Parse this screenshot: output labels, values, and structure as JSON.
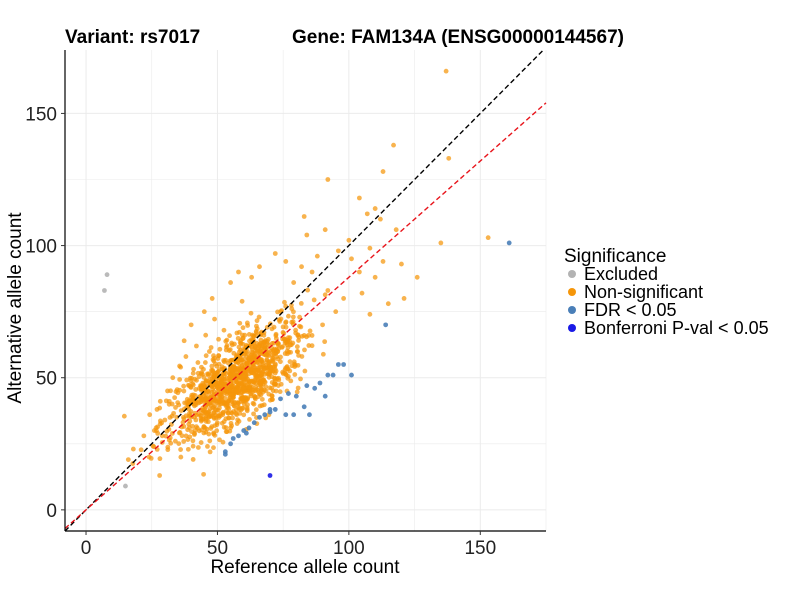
{
  "chart_data": {
    "type": "scatter",
    "title_left": "Variant: rs7017",
    "title_right": "Gene: FAM134A (ENSG00000144567)",
    "xlabel": "Reference allele count",
    "ylabel": "Alternative allele count",
    "xlim": [
      -8,
      175
    ],
    "ylim": [
      -8,
      174
    ],
    "xticks": [
      0,
      50,
      100,
      150
    ],
    "yticks": [
      0,
      50,
      100,
      150
    ],
    "grid": true,
    "reference_lines": [
      {
        "name": "identity",
        "slope": 1.0,
        "intercept": 0,
        "color": "#000000",
        "dash": true
      },
      {
        "name": "fitted",
        "slope": 0.88,
        "intercept": 0,
        "color": "#e8141b",
        "dash": true
      }
    ],
    "legend": {
      "title": "Significance",
      "position": "right",
      "entries": [
        {
          "label": "Excluded",
          "color": "#b3b3b3"
        },
        {
          "label": "Non-significant",
          "color": "#f5960a"
        },
        {
          "label": "FDR < 0.05",
          "color": "#4a7fb8"
        },
        {
          "label": "Bonferroni P-val < 0.05",
          "color": "#1a1ae6"
        }
      ]
    },
    "series": [
      {
        "name": "Excluded",
        "color": "#b3b3b3",
        "points": [
          [
            7,
            83
          ],
          [
            8,
            89
          ],
          [
            15,
            9
          ]
        ]
      },
      {
        "name": "FDR < 0.05",
        "color": "#4a7fb8",
        "points": [
          [
            161,
            101
          ],
          [
            114,
            70
          ],
          [
            101,
            51
          ],
          [
            98,
            55
          ],
          [
            96,
            55
          ],
          [
            94,
            51
          ],
          [
            92,
            51
          ],
          [
            89,
            48
          ],
          [
            87,
            46
          ],
          [
            84,
            47
          ],
          [
            80,
            43
          ],
          [
            77,
            44
          ],
          [
            74,
            42
          ],
          [
            72,
            38
          ],
          [
            70,
            37
          ],
          [
            68,
            36
          ],
          [
            66,
            35
          ],
          [
            62,
            31
          ],
          [
            60,
            30
          ],
          [
            58,
            28
          ],
          [
            56,
            27
          ],
          [
            55,
            25
          ],
          [
            53,
            22
          ],
          [
            53,
            21
          ],
          [
            70,
            38
          ],
          [
            76,
            36
          ],
          [
            79,
            36
          ],
          [
            83,
            39
          ],
          [
            85,
            36
          ],
          [
            91,
            43
          ],
          [
            64,
            33
          ],
          [
            61,
            29
          ]
        ]
      },
      {
        "name": "Bonferroni P-val < 0.05",
        "color": "#1a1ae6",
        "points": [
          [
            70,
            13
          ]
        ]
      },
      {
        "name": "Non-significant",
        "color": "#f5960a",
        "outliers": [
          [
            137,
            166
          ],
          [
            117,
            138
          ],
          [
            138,
            133
          ],
          [
            113,
            128
          ],
          [
            92,
            125
          ],
          [
            104,
            118
          ],
          [
            110,
            114
          ],
          [
            107,
            112
          ],
          [
            83,
            111
          ],
          [
            112,
            110
          ],
          [
            91,
            106
          ],
          [
            118,
            106
          ],
          [
            84,
            104
          ],
          [
            135,
            101
          ],
          [
            153,
            103
          ],
          [
            100,
            102
          ],
          [
            108,
            99
          ],
          [
            120,
            93
          ],
          [
            126,
            88
          ],
          [
            121,
            80
          ],
          [
            86,
            90
          ],
          [
            79,
            86
          ],
          [
            92,
            83
          ],
          [
            28,
            13
          ],
          [
            24,
            20
          ],
          [
            18,
            23
          ],
          [
            22,
            28
          ],
          [
            30,
            34
          ],
          [
            26,
            30
          ],
          [
            29,
            28
          ],
          [
            34,
            26
          ],
          [
            104,
            90
          ],
          [
            101,
            95
          ],
          [
            96,
            98
          ],
          [
            88,
            96
          ],
          [
            82,
            92
          ],
          [
            76,
            94
          ],
          [
            72,
            97
          ],
          [
            66,
            92
          ],
          [
            63,
            88
          ],
          [
            95,
            75
          ],
          [
            105,
            82
          ],
          [
            110,
            88
          ],
          [
            113,
            94
          ],
          [
            98,
            80
          ],
          [
            90,
            70
          ],
          [
            86,
            66
          ],
          [
            115,
            78
          ],
          [
            108,
            74
          ],
          [
            33,
            50
          ],
          [
            36,
            54
          ],
          [
            38,
            58
          ],
          [
            42,
            62
          ],
          [
            31,
            45
          ],
          [
            27,
            38
          ],
          [
            40,
            70
          ],
          [
            45,
            75
          ],
          [
            48,
            80
          ],
          [
            55,
            86
          ],
          [
            58,
            90
          ]
        ],
        "cloud": {
          "count": 1180,
          "center": [
            57,
            49
          ],
          "sd_major": 15,
          "sd_minor": 6.5,
          "direction": [
            1.0,
            0.86
          ],
          "seed": 7017
        }
      }
    ]
  }
}
